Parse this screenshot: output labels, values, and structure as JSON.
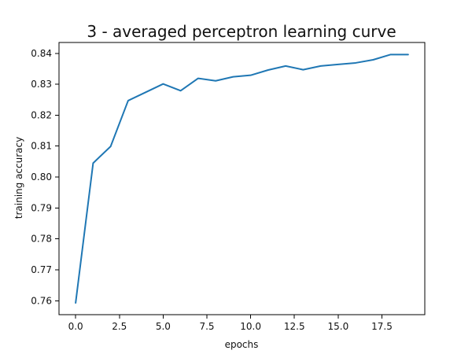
{
  "chart_data": {
    "type": "line",
    "title": "3 - averaged perceptron learning curve",
    "xlabel": "epochs",
    "ylabel": "training accuracy",
    "xlim": [
      -0.95,
      19.95
    ],
    "ylim": [
      0.7555,
      0.8435
    ],
    "xticks": [
      0.0,
      2.5,
      5.0,
      7.5,
      10.0,
      12.5,
      15.0,
      17.5
    ],
    "xtick_labels": [
      "0.0",
      "2.5",
      "5.0",
      "7.5",
      "10.0",
      "12.5",
      "15.0",
      "17.5"
    ],
    "yticks": [
      0.76,
      0.77,
      0.78,
      0.79,
      0.8,
      0.81,
      0.82,
      0.83,
      0.84
    ],
    "ytick_labels": [
      "0.76",
      "0.77",
      "0.78",
      "0.79",
      "0.80",
      "0.81",
      "0.82",
      "0.83",
      "0.84"
    ],
    "grid": false,
    "legend": "none",
    "series": [
      {
        "color": "#1f77b4",
        "x": [
          0,
          1,
          2,
          3,
          4,
          5,
          6,
          7,
          8,
          9,
          10,
          11,
          12,
          13,
          14,
          15,
          16,
          17,
          18,
          19
        ],
        "y": [
          0.7593,
          0.8045,
          0.8099,
          0.8247,
          0.8274,
          0.8301,
          0.8279,
          0.8319,
          0.8311,
          0.8324,
          0.8329,
          0.8346,
          0.8359,
          0.8347,
          0.8359,
          0.8364,
          0.8369,
          0.8379,
          0.8396,
          0.8396
        ]
      }
    ]
  }
}
